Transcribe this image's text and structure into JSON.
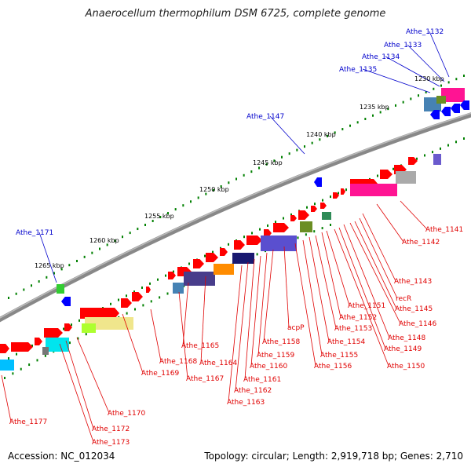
{
  "title": "Anaerocellum thermophilum DSM 6725, complete genome",
  "accession": "Accession: NC_012034",
  "summary": "Topology: circular; Length: 2,919,718 bp; Genes: 2,710",
  "kbp_ticks": [
    "1230 kbp",
    "1235 kbp",
    "1240 kbp",
    "1245 kbp",
    "1250 kbp",
    "1255 kbp",
    "1260 kbp",
    "1265 kbp"
  ],
  "blue_labels": [
    "Athe_1132",
    "Athe_1133",
    "Athe_1134",
    "Athe_1135",
    "Athe_1147",
    "Athe_1171"
  ],
  "red_labels": [
    "Athe_1141",
    "Athe_1142",
    "Athe_1143",
    "recR",
    "Athe_1145",
    "Athe_1146",
    "Athe_1148",
    "Athe_1149",
    "Athe_1150",
    "Athe_1151",
    "Athe_1152",
    "Athe_1153",
    "Athe_1154",
    "Athe_1155",
    "Athe_1156",
    "acpP",
    "Athe_1158",
    "Athe_1159",
    "Athe_1160",
    "Athe_1161",
    "Athe_1162",
    "Athe_1163",
    "Athe_1164",
    "Athe_1165",
    "Athe_1167",
    "Athe_1168",
    "Athe_1169",
    "Athe_1170",
    "Athe_1172",
    "Athe_1173",
    "Athe_1177"
  ],
  "colors": {
    "forward_gene": "#ff0000",
    "reverse_gene": "#0000ff",
    "backbone": "#888888",
    "tick": "#008000",
    "cog_magenta": "#ff1493",
    "cog_purple": "#5a4fcf",
    "cog_yellow": "#f0e68c",
    "cog_cyan": "#00e5ee",
    "cog_olive": "#6b8e23"
  }
}
